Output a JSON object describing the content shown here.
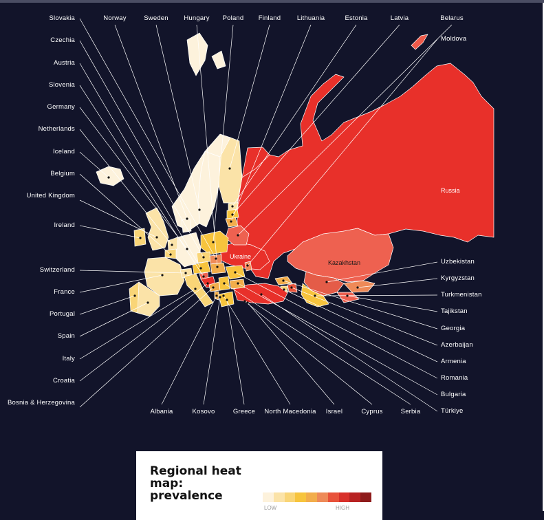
{
  "labels": {
    "top": [
      "Norway",
      "Sweden",
      "Hungary",
      "Poland",
      "Finland",
      "Lithuania",
      "Estonia",
      "Latvia",
      "Belarus"
    ],
    "left": [
      "Slovakia",
      "Czechia",
      "Austria",
      "Slovenia",
      "Germany",
      "Netherlands",
      "Iceland",
      "Belgium",
      "United Kingdom",
      "Ireland",
      "Switzerland",
      "France",
      "Portugal",
      "Spain",
      "Italy",
      "Croatia",
      "Bosnia & Herzegovina"
    ],
    "right": [
      "Moldova",
      "Uzbekistan",
      "Kyrgyzstan",
      "Turkmenistan",
      "Tajikstan",
      "Georgia",
      "Azerbaijan",
      "Armenia",
      "Romania",
      "Bulgaria",
      "Türkiye"
    ],
    "bottom": [
      "Albania",
      "Kosovo",
      "Greece",
      "North Macedonia",
      "Israel",
      "Cyprus",
      "Serbia"
    ],
    "on_map": {
      "russia": "Russia",
      "kazakhstan": "Kazakhstan",
      "ukraine": "Ukraine"
    }
  },
  "colors": {
    "background": "#12142a",
    "leader_line": "#ffffff",
    "scale": [
      "#fdf2dc",
      "#fbe3a8",
      "#f9d577",
      "#f7c43d",
      "#f2ad4b",
      "#ee8a58",
      "#e8523a",
      "#d8302a",
      "#b82222",
      "#8e1b1b"
    ]
  },
  "legend": {
    "title": "Regional heat map: prevalence",
    "low": "LOW",
    "high": "HIGH"
  }
}
